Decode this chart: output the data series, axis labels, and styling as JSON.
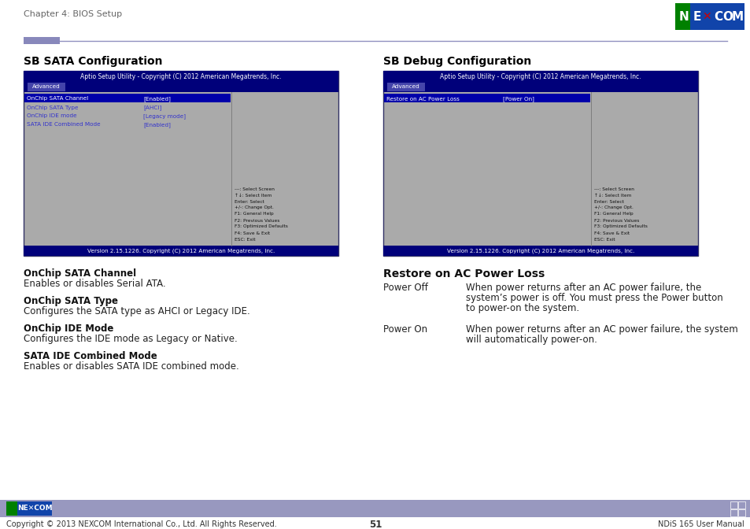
{
  "page_title": "Chapter 4: BIOS Setup",
  "page_number": "51",
  "footer_left": "Copyright © 2013 NEXCOM International Co., Ltd. All Rights Reserved.",
  "footer_right": "NDiS 165 User Manual",
  "bg_color": "#ffffff",
  "left_section_title": "SB SATA Configuration",
  "right_section_title": "SB Debug Configuration",
  "bios_title_bar_color": "#00007a",
  "bios_title_text": "Aptio Setup Utility - Copyright (C) 2012 American Megatrends, Inc.",
  "bios_tab_color": "#4444aa",
  "bios_tab_text": "Advanced",
  "bios_bg_color": "#aaaaaa",
  "bios_select_bg": "#0000aa",
  "bios_footer_text": "Version 2.15.1226. Copyright (C) 2012 American Megatrends, Inc.",
  "left_bios_items": [
    [
      "OnChip SATA Channel",
      "[Enabled]"
    ],
    [
      "OnChip SATA Type",
      "[AHCI]"
    ],
    [
      "OnChip IDE mode",
      "[Legacy mode]"
    ],
    [
      "SATA IDE Combined Mode",
      "[Enabled]"
    ]
  ],
  "left_bios_help": [
    "---: Select Screen",
    "↑↓: Select Item",
    "Enter: Select",
    "+/-: Change Opt.",
    "F1: General Help",
    "F2: Previous Values",
    "F3: Optimized Defaults",
    "F4: Save & Exit",
    "ESC: Exit"
  ],
  "right_bios_items": [
    [
      "Restore on AC Power Loss",
      "[Power On]"
    ]
  ],
  "right_bios_help": [
    "---: Select Screen",
    "↑↓: Select Item",
    "Enter: Select",
    "+/-: Change Opt.",
    "F1: General Help",
    "F2: Previous Values",
    "F3: Optimized Defaults",
    "F4: Save & Exit",
    "ESC: Exit"
  ],
  "subsection_title": "Restore on AC Power Loss",
  "subsection_items": [
    {
      "term": "Power Off",
      "desc_lines": [
        "When power returns after an AC power failure, the",
        "system’s power is off. You must press the Power button",
        "to power-on the system."
      ]
    },
    {
      "term": "Power On",
      "desc_lines": [
        "When power returns after an AC power failure, the system",
        "will automatically power-on."
      ]
    }
  ],
  "left_desc_items": [
    {
      "bold": "OnChip SATA Channel",
      "text": "Enables or disables Serial ATA."
    },
    {
      "bold": "OnChip SATA Type",
      "text": "Configures the SATA type as AHCI or Legacy IDE."
    },
    {
      "bold": "OnChip IDE Mode",
      "text": "Configures the IDE mode as Legacy or Native."
    },
    {
      "bold": "SATA IDE Combined Mode",
      "text": "Enables or disables SATA IDE combined mode."
    }
  ],
  "header_bar_rect_color": "#8888bb",
  "header_line_color": "#9090c0",
  "footer_bar_color": "#9898bf",
  "footer_text_color": "#333333",
  "nexcom_logo_green": "#008000",
  "nexcom_logo_blue": "#0000cc",
  "nexcom_logo_red_x": "#cc0000",
  "section_title_color": "#000000",
  "bios_item_color": "#3333cc",
  "body_text_color": "#222222",
  "bold_text_color": "#111111"
}
